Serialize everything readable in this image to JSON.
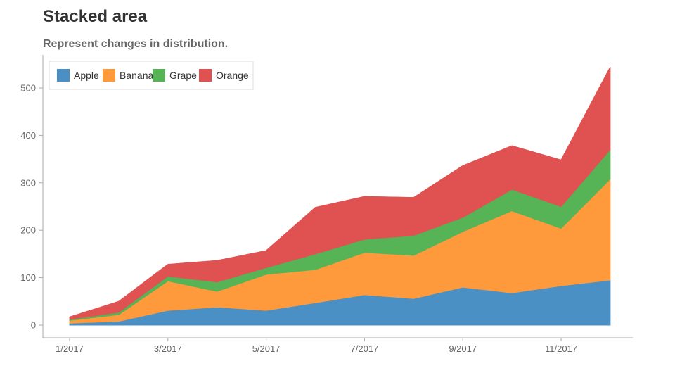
{
  "title": "Stacked area",
  "subtitle": "Represent changes in distribution.",
  "chart_data": {
    "type": "area",
    "stacked": true,
    "x": [
      "1/2017",
      "2/2017",
      "3/2017",
      "4/2017",
      "5/2017",
      "6/2017",
      "7/2017",
      "8/2017",
      "9/2017",
      "10/2017",
      "11/2017",
      "12/2017"
    ],
    "x_tick_labels": [
      "1/2017",
      "3/2017",
      "5/2017",
      "7/2017",
      "9/2017",
      "11/2017"
    ],
    "ylim": [
      0,
      560
    ],
    "y_ticks": [
      0,
      100,
      200,
      300,
      400,
      500
    ],
    "grid": false,
    "legend_position": "top-left",
    "series": [
      {
        "name": "Apple",
        "color": "#4a90c4",
        "values": [
          4,
          8,
          31,
          38,
          31,
          47,
          64,
          56,
          80,
          68,
          83,
          95
        ]
      },
      {
        "name": "Banana",
        "color": "#ff9a3c",
        "values": [
          6,
          14,
          62,
          33,
          76,
          70,
          89,
          91,
          117,
          173,
          121,
          213
        ]
      },
      {
        "name": "Grape",
        "color": "#56b356",
        "values": [
          2,
          5,
          10,
          20,
          14,
          33,
          28,
          42,
          30,
          45,
          46,
          62
        ]
      },
      {
        "name": "Orange",
        "color": "#e05252",
        "values": [
          5,
          23,
          25,
          45,
          36,
          98,
          90,
          80,
          109,
          92,
          98,
          174
        ]
      }
    ]
  }
}
